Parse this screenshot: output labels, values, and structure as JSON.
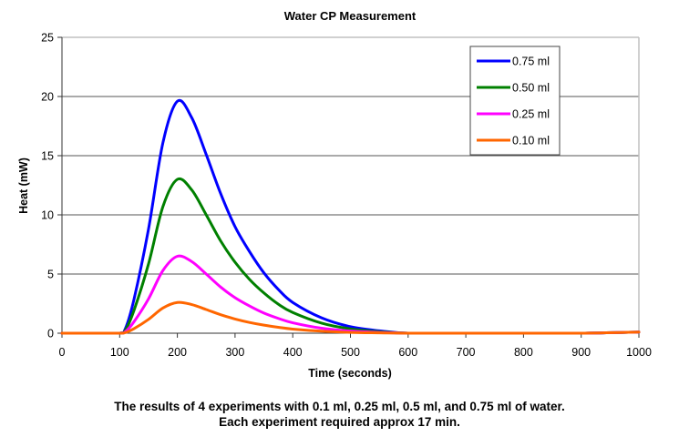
{
  "chart_data": {
    "type": "line",
    "title": "Water CP Measurement",
    "xlabel": "Time (seconds)",
    "ylabel": "Heat (mW)",
    "xlim": [
      0,
      1000
    ],
    "ylim": [
      0,
      25
    ],
    "x_ticks": [
      0,
      100,
      200,
      300,
      400,
      500,
      600,
      700,
      800,
      900,
      1000
    ],
    "y_ticks": [
      0,
      5,
      10,
      15,
      20,
      25
    ],
    "grid": "horizontal",
    "legend_position": "top-right",
    "x": [
      0,
      50,
      100,
      110,
      125,
      150,
      175,
      200,
      225,
      250,
      275,
      300,
      325,
      350,
      375,
      400,
      450,
      500,
      550,
      600,
      700,
      800,
      900,
      1000
    ],
    "series": [
      {
        "name": "0.75 ml",
        "color": "#0000ff",
        "values": [
          0,
          0,
          0,
          0.4,
          2.9,
          8.8,
          16.1,
          19.6,
          18.2,
          15.1,
          11.8,
          9.0,
          6.9,
          5.1,
          3.7,
          2.6,
          1.3,
          0.55,
          0.2,
          0,
          0,
          0,
          0,
          0.1
        ]
      },
      {
        "name": "0.50 ml",
        "color": "#008000",
        "values": [
          0,
          0,
          0,
          0.26,
          1.95,
          5.85,
          10.7,
          13.0,
          12.1,
          10.0,
          7.8,
          6.0,
          4.55,
          3.4,
          2.45,
          1.75,
          0.85,
          0.36,
          0.13,
          0,
          0,
          0,
          0,
          0.1
        ]
      },
      {
        "name": "0.25 ml",
        "color": "#ff00ff",
        "values": [
          0,
          0,
          0,
          0.13,
          0.98,
          2.9,
          5.3,
          6.5,
          6.05,
          5.0,
          3.9,
          3.0,
          2.3,
          1.7,
          1.25,
          0.88,
          0.42,
          0.18,
          0.07,
          0,
          0,
          0,
          0,
          0.1
        ]
      },
      {
        "name": "0.10 ml",
        "color": "#ff6600",
        "values": [
          0,
          0,
          0,
          0.05,
          0.39,
          1.17,
          2.13,
          2.6,
          2.42,
          2.0,
          1.56,
          1.2,
          0.91,
          0.68,
          0.5,
          0.35,
          0.17,
          0.07,
          0.03,
          0,
          0,
          0,
          0,
          0.1
        ]
      }
    ]
  },
  "caption": {
    "line1": "The results of 4 experiments with 0.1 ml, 0.25 ml, 0.5 ml, and 0.75 ml of water.",
    "line2": "Each experiment required approx 17 min."
  }
}
